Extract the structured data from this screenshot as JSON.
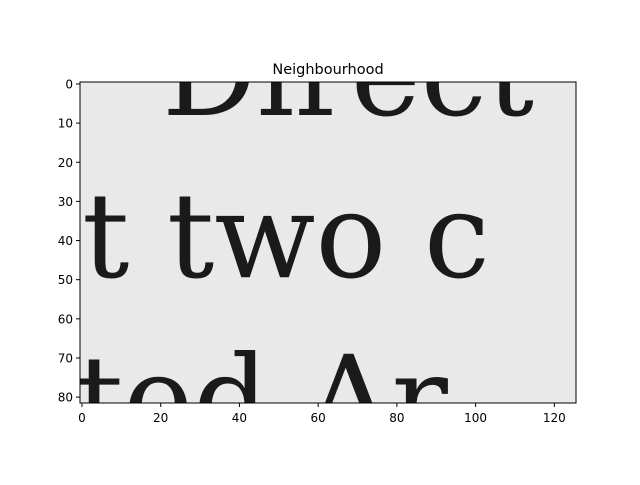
{
  "chart_data": {
    "type": "heatmap",
    "title": "Neighbourhood",
    "xlabel": "",
    "ylabel": "",
    "xlim": [
      0,
      126
    ],
    "ylim": [
      82,
      0
    ],
    "x_ticks": [
      0,
      20,
      40,
      60,
      80,
      100,
      120
    ],
    "y_ticks": [
      0,
      10,
      20,
      30,
      40,
      50,
      60,
      70,
      80
    ],
    "grid": false,
    "colormap": "gray",
    "image_text_lines": [
      "Direct",
      "t two c",
      "ted Ar"
    ]
  },
  "colors": {
    "paper": "#ebebeb",
    "ink": "#1a1a1a",
    "axis": "#000000"
  }
}
